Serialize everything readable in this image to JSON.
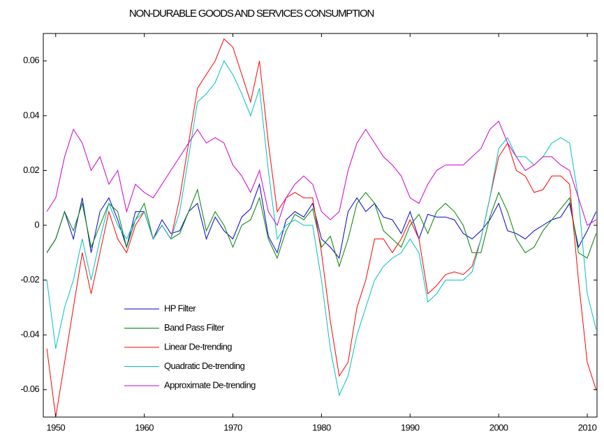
{
  "chart_data": {
    "type": "line",
    "title": "NON-DURABLE GOODS AND SERVICES CONSUMPTION",
    "x": [
      1949,
      1950,
      1951,
      1952,
      1953,
      1954,
      1955,
      1956,
      1957,
      1958,
      1959,
      1960,
      1961,
      1962,
      1963,
      1964,
      1965,
      1966,
      1967,
      1968,
      1969,
      1970,
      1971,
      1972,
      1973,
      1974,
      1975,
      1976,
      1977,
      1978,
      1979,
      1980,
      1981,
      1982,
      1983,
      1984,
      1985,
      1986,
      1987,
      1988,
      1989,
      1990,
      1991,
      1992,
      1993,
      1994,
      1995,
      1996,
      1997,
      1998,
      1999,
      2000,
      2001,
      2002,
      2003,
      2004,
      2005,
      2006,
      2007,
      2008,
      2009,
      2010,
      2011
    ],
    "series": [
      {
        "name": "HP Filter",
        "color": "#0000cc",
        "values": [
          -0.01,
          -0.005,
          0.005,
          -0.005,
          0.01,
          -0.01,
          0.005,
          0.01,
          0.002,
          -0.008,
          0.005,
          0.005,
          -0.005,
          0.002,
          -0.003,
          -0.002,
          0.005,
          0.008,
          -0.005,
          0.003,
          -0.002,
          -0.005,
          0.003,
          0.006,
          0.015,
          -0.004,
          -0.01,
          0.002,
          0.005,
          0.003,
          0.008,
          -0.005,
          -0.008,
          -0.012,
          0.005,
          0.01,
          0.005,
          0.008,
          0.003,
          0.002,
          -0.003,
          0.005,
          -0.005,
          0.004,
          0.003,
          0.003,
          0.002,
          -0.003,
          -0.005,
          -0.002,
          0.002,
          0.008,
          -0.002,
          -0.003,
          -0.005,
          -0.002,
          0.0,
          0.002,
          0.003,
          0.008,
          -0.008,
          -0.002,
          0.005
        ]
      },
      {
        "name": "Band Pass Filter",
        "color": "#008000",
        "values": [
          -0.01,
          -0.005,
          0.005,
          -0.002,
          0.008,
          -0.008,
          0.0,
          0.008,
          0.005,
          -0.008,
          0.002,
          0.008,
          -0.005,
          0.0,
          -0.005,
          -0.003,
          0.005,
          0.013,
          -0.002,
          0.005,
          0.0,
          -0.008,
          0.0,
          0.002,
          0.01,
          -0.005,
          -0.012,
          -0.002,
          0.004,
          0.002,
          0.006,
          -0.008,
          -0.004,
          -0.015,
          -0.005,
          0.008,
          0.012,
          0.008,
          -0.002,
          -0.005,
          -0.008,
          0.0,
          0.004,
          -0.003,
          0.005,
          0.008,
          0.005,
          0.0,
          -0.01,
          -0.01,
          0.003,
          0.012,
          0.005,
          -0.005,
          -0.01,
          -0.008,
          -0.002,
          0.002,
          0.006,
          0.01,
          -0.01,
          -0.012,
          -0.003
        ]
      },
      {
        "name": "Linear De-trending",
        "color": "#ff0000",
        "values": [
          -0.045,
          -0.07,
          -0.05,
          -0.03,
          -0.01,
          -0.025,
          -0.01,
          0.005,
          -0.005,
          -0.01,
          0.0,
          0.005,
          -0.005,
          0.0,
          -0.005,
          0.01,
          0.03,
          0.05,
          0.055,
          0.06,
          0.068,
          0.065,
          0.055,
          0.045,
          0.06,
          0.03,
          0.005,
          0.01,
          0.012,
          0.01,
          0.01,
          -0.01,
          -0.035,
          -0.055,
          -0.05,
          -0.03,
          -0.02,
          -0.005,
          -0.005,
          -0.01,
          -0.005,
          0.002,
          -0.005,
          -0.025,
          -0.022,
          -0.018,
          -0.017,
          -0.018,
          -0.015,
          -0.005,
          0.01,
          0.025,
          0.03,
          0.02,
          0.018,
          0.012,
          0.013,
          0.018,
          0.018,
          0.015,
          -0.02,
          -0.05,
          -0.06
        ]
      },
      {
        "name": "Quadratic De-trending",
        "color": "#00c0c0",
        "values": [
          -0.02,
          -0.045,
          -0.03,
          -0.02,
          -0.005,
          -0.02,
          -0.005,
          0.008,
          0.0,
          -0.005,
          0.002,
          0.005,
          -0.005,
          0.0,
          -0.005,
          0.005,
          0.025,
          0.045,
          0.048,
          0.052,
          0.06,
          0.055,
          0.048,
          0.04,
          0.05,
          0.02,
          -0.005,
          0.0,
          0.002,
          0.0,
          0.0,
          -0.02,
          -0.045,
          -0.062,
          -0.055,
          -0.04,
          -0.03,
          -0.02,
          -0.015,
          -0.012,
          -0.01,
          -0.005,
          -0.01,
          -0.028,
          -0.025,
          -0.02,
          -0.02,
          -0.02,
          -0.017,
          -0.005,
          0.01,
          0.028,
          0.032,
          0.025,
          0.025,
          0.022,
          0.025,
          0.03,
          0.032,
          0.03,
          0.01,
          -0.025,
          -0.038
        ]
      },
      {
        "name": "Approximate De-trending",
        "color": "#cc00cc",
        "values": [
          0.005,
          0.01,
          0.025,
          0.035,
          0.03,
          0.02,
          0.025,
          0.015,
          0.02,
          0.005,
          0.015,
          0.012,
          0.01,
          0.015,
          0.02,
          0.025,
          0.03,
          0.035,
          0.03,
          0.032,
          0.03,
          0.022,
          0.018,
          0.012,
          0.02,
          0.005,
          0.0,
          0.01,
          0.015,
          0.018,
          0.015,
          0.005,
          0.002,
          0.005,
          0.02,
          0.03,
          0.035,
          0.03,
          0.025,
          0.022,
          0.018,
          0.01,
          0.008,
          0.015,
          0.02,
          0.022,
          0.022,
          0.022,
          0.025,
          0.028,
          0.035,
          0.038,
          0.03,
          0.025,
          0.02,
          0.022,
          0.025,
          0.025,
          0.022,
          0.02,
          0.01,
          0.0,
          0.002
        ]
      }
    ],
    "xlim": [
      1948.6,
      2011.1
    ],
    "xticks": [
      1950,
      1960,
      1970,
      1980,
      1990,
      2000,
      2010
    ],
    "ylim": [
      -0.07,
      0.07
    ],
    "yticks": [
      -0.06,
      -0.04,
      -0.02,
      0,
      0.02,
      0.04,
      0.06
    ],
    "grid": false,
    "legend": "lower left"
  }
}
